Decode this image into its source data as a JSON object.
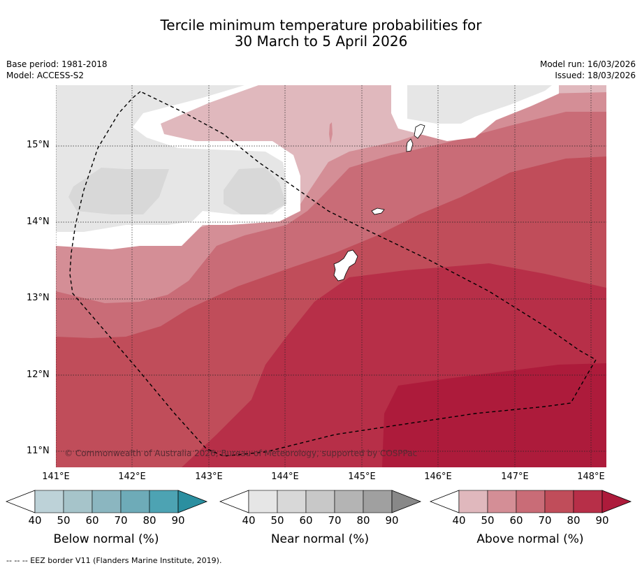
{
  "header": {
    "title_line1": "Tercile minimum temperature probabilities for",
    "title_line2": "30 March to 5 April 2026",
    "base_period": "Base period: 1981-2018",
    "model": "Model: ACCESS-S2",
    "model_run": "Model run: 16/03/2026",
    "issued": "Issued: 18/03/2026"
  },
  "map": {
    "lat_labels": [
      "15°N",
      "14°N",
      "13°N",
      "12°N",
      "11°N"
    ],
    "lon_labels": [
      "141°E",
      "142°E",
      "143°E",
      "144°E",
      "145°E",
      "146°E",
      "147°E",
      "148°E"
    ],
    "copyright": "© Commonwealth of Australia 2026, Bureau of Meteorology, supported by COSPPac",
    "colors": {
      "above_40": "#e0b8bd",
      "above_50": "#d48e96",
      "above_60": "#c96c77",
      "above_70": "#c04d5a",
      "above_80": "#b72f48",
      "above_90": "#ad1b3b",
      "near_40": "#e6e6e6",
      "near_50": "#d8d8d8",
      "white": "#ffffff"
    }
  },
  "colorbars": [
    {
      "title": "Below normal (%)",
      "ticks": [
        "40",
        "50",
        "60",
        "70",
        "80",
        "90"
      ],
      "colors": [
        "#bdd2d8",
        "#a6c4ca",
        "#8bb6c0",
        "#6eabb8",
        "#4da3b3",
        "#2b8fa0"
      ]
    },
    {
      "title": "Near normal (%)",
      "ticks": [
        "40",
        "50",
        "60",
        "70",
        "80",
        "90"
      ],
      "colors": [
        "#e6e6e6",
        "#d8d8d8",
        "#c8c8c8",
        "#b4b4b4",
        "#a0a0a0",
        "#888888"
      ]
    },
    {
      "title": "Above normal (%)",
      "ticks": [
        "40",
        "50",
        "60",
        "70",
        "80",
        "90"
      ],
      "colors": [
        "#e0b8bd",
        "#d48e96",
        "#c96c77",
        "#c04d5a",
        "#b72f48",
        "#ad1b3b"
      ]
    }
  ],
  "footnote": "--  --  -- EEZ border V11 (Flanders Marine Institute, 2019)."
}
